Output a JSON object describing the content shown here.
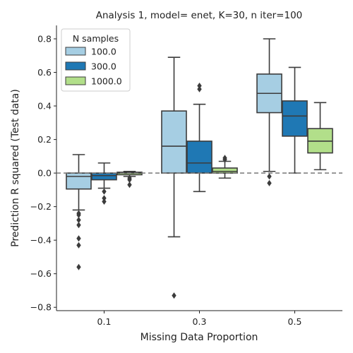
{
  "chart_data": {
    "type": "boxplot",
    "title": "Analysis 1, model= enet, K=30, n iter=100",
    "xlabel": "Missing Data Proportion",
    "ylabel": "Prediction R squared (Test data)",
    "categories": [
      "0.1",
      "0.3",
      "0.5"
    ],
    "ylim": [
      -0.82,
      0.88
    ],
    "yticks": [
      -0.8,
      -0.6,
      -0.4,
      -0.2,
      0.0,
      0.2,
      0.4,
      0.6,
      0.8
    ],
    "ytick_labels": [
      "−0.8",
      "−0.6",
      "−0.4",
      "−0.2",
      "0.0",
      "0.2",
      "0.4",
      "0.6",
      "0.8"
    ],
    "reference_line": 0.0,
    "legend": {
      "title": "N samples",
      "position": "upper-left"
    },
    "series": [
      {
        "name": "100.0",
        "color": "#a6cee3",
        "boxes": [
          {
            "whislo": -0.22,
            "q1": -0.095,
            "med": -0.02,
            "q3": 0.0,
            "whishi": 0.11,
            "fliers": [
              -0.24,
              -0.25,
              -0.28,
              -0.31,
              -0.39,
              -0.43,
              -0.56
            ]
          },
          {
            "whislo": -0.38,
            "q1": 0.0,
            "med": 0.16,
            "q3": 0.37,
            "whishi": 0.69,
            "fliers": [
              -0.73
            ]
          },
          {
            "whislo": 0.01,
            "q1": 0.36,
            "med": 0.475,
            "q3": 0.59,
            "whishi": 0.8,
            "fliers": [
              -0.02,
              -0.06
            ]
          }
        ]
      },
      {
        "name": "300.0",
        "color": "#1f78b4",
        "boxes": [
          {
            "whislo": -0.09,
            "q1": -0.04,
            "med": -0.015,
            "q3": 0.0,
            "whishi": 0.06,
            "fliers": [
              -0.11,
              -0.15,
              -0.17
            ]
          },
          {
            "whislo": -0.11,
            "q1": 0.0,
            "med": 0.06,
            "q3": 0.19,
            "whishi": 0.41,
            "fliers": [
              0.5,
              0.52
            ]
          },
          {
            "whislo": 0.0,
            "q1": 0.22,
            "med": 0.34,
            "q3": 0.43,
            "whishi": 0.63,
            "fliers": []
          }
        ]
      },
      {
        "name": "1000.0",
        "color": "#b2df8a",
        "boxes": [
          {
            "whislo": -0.02,
            "q1": -0.01,
            "med": 0.0,
            "q3": 0.005,
            "whishi": 0.01,
            "fliers": [
              -0.03,
              -0.04,
              -0.07
            ]
          },
          {
            "whislo": -0.03,
            "q1": 0.0,
            "med": 0.01,
            "q3": 0.03,
            "whishi": 0.07,
            "fliers": [
              0.08,
              0.09
            ]
          },
          {
            "whislo": 0.02,
            "q1": 0.12,
            "med": 0.19,
            "q3": 0.265,
            "whishi": 0.42,
            "fliers": []
          }
        ]
      }
    ]
  }
}
